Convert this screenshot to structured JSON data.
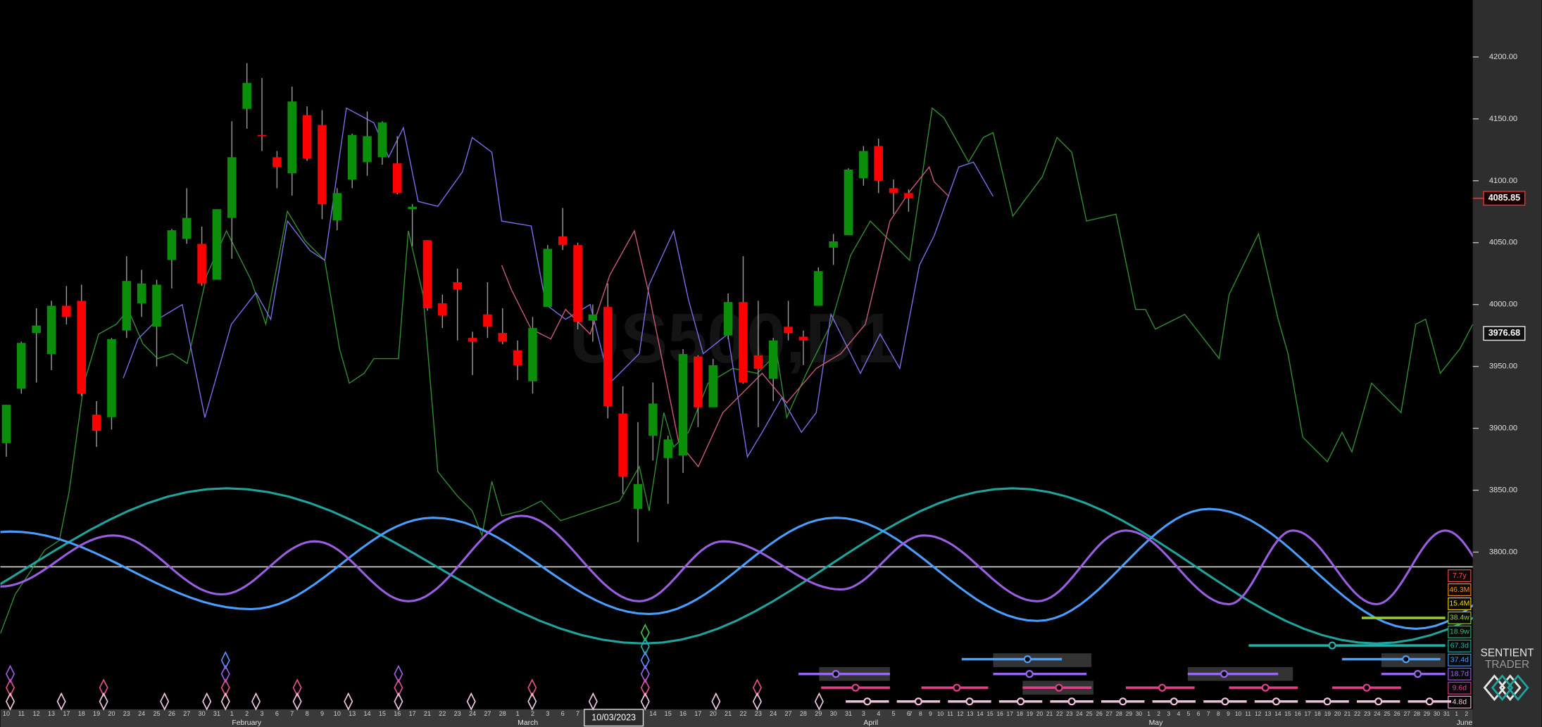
{
  "chart_data": {
    "type": "candlestick",
    "symbol": "US500,D1",
    "x": [
      "10",
      "11",
      "12",
      "13",
      "17",
      "18",
      "19",
      "20",
      "23",
      "24",
      "25",
      "26",
      "27",
      "30",
      "31",
      "1",
      "2",
      "3",
      "6",
      "7",
      "8",
      "9",
      "10",
      "13",
      "14",
      "15",
      "16",
      "17",
      "21",
      "22",
      "23",
      "24",
      "27",
      "28",
      "1",
      "2",
      "3",
      "6",
      "7",
      "8",
      "9",
      "10",
      "13",
      "14",
      "15",
      "16",
      "17",
      "20",
      "21",
      "22",
      "23",
      "24",
      "27",
      "28",
      "29",
      "30",
      "31",
      "3",
      "4",
      "5",
      "6"
    ],
    "future_x": [
      "7",
      "8",
      "9",
      "10",
      "11",
      "12",
      "13",
      "14",
      "15",
      "16",
      "17",
      "18",
      "19",
      "20",
      "21",
      "22",
      "23",
      "24",
      "25",
      "26",
      "27",
      "28",
      "29",
      "30",
      "1",
      "2",
      "3",
      "4",
      "5",
      "6",
      "7",
      "8",
      "9",
      "10",
      "11",
      "12",
      "13",
      "14",
      "15",
      "16",
      "17",
      "18",
      "19",
      "20",
      "21",
      "22",
      "23",
      "24",
      "25",
      "26",
      "27",
      "28",
      "29",
      "30",
      "31",
      "1",
      "2"
    ],
    "months": [
      "February",
      "March",
      "April",
      "May",
      "June"
    ],
    "open": [
      3888,
      3932,
      3977,
      3960,
      3999,
      4003,
      3911,
      3909,
      3979,
      4001,
      3982,
      4036,
      4053,
      4049,
      4020,
      4070,
      4158,
      4137,
      4119,
      4106,
      4153,
      4145,
      4068,
      4101,
      4115,
      4119,
      4114,
      4077,
      4052,
      4001,
      4018,
      3973,
      3992,
      3977,
      3963,
      3938,
      3998,
      4055,
      4048,
      3987,
      3998,
      3912,
      3835,
      3894,
      3876,
      3878,
      3958,
      3917,
      3975,
      4002,
      3959,
      3940,
      3982,
      3974,
      3999,
      4046,
      4056,
      4102,
      4128,
      4094,
      4090
    ],
    "high": [
      3919,
      3970,
      3997,
      4003,
      4015,
      4016,
      3922,
      3973,
      4039,
      4028,
      4020,
      4061,
      4094,
      4063,
      4077,
      4148,
      4195,
      4183,
      4124,
      4176,
      4160,
      4157,
      4094,
      4138,
      4156,
      4148,
      4136,
      4081,
      4052,
      4008,
      4029,
      3978,
      4018,
      3997,
      3971,
      3990,
      4048,
      4078,
      4050,
      4000,
      4017,
      3934,
      3905,
      3937,
      3894,
      3964,
      3959,
      3956,
      4009,
      4039,
      4003,
      3973,
      4003,
      3979,
      4030,
      4057,
      4110,
      4128,
      4134,
      4101,
      4093
    ],
    "low": [
      3877,
      3928,
      3937,
      3947,
      3984,
      3926,
      3885,
      3899,
      3973,
      3990,
      3950,
      4013,
      4049,
      4015,
      4020,
      4037,
      4142,
      4124,
      4094,
      4088,
      4116,
      4069,
      4060,
      4094,
      4104,
      4113,
      4089,
      4047,
      3995,
      3981,
      3971,
      3943,
      3973,
      3968,
      3939,
      3928,
      3998,
      4044,
      3980,
      3970,
      3908,
      3847,
      3808,
      3874,
      3839,
      3864,
      3901,
      3917,
      3972,
      3936,
      3901,
      3922,
      3971,
      3951,
      3999,
      4032,
      4056,
      4096,
      4090,
      4073,
      4075
    ],
    "close": [
      3919,
      3969,
      3983,
      3999,
      3990,
      3928,
      3898,
      3972,
      4019,
      4017,
      4016,
      4060,
      4070,
      4017,
      4077,
      4119,
      4179,
      4136,
      4111,
      4164,
      4118,
      4081,
      4090,
      4137,
      4136,
      4147,
      4090,
      4079,
      3997,
      3991,
      4012,
      3970,
      3982,
      3970,
      3951,
      3981,
      4045,
      4048,
      3986,
      3992,
      3918,
      3861,
      3855,
      3920,
      3891,
      3960,
      3917,
      3951,
      4002,
      3937,
      3948,
      3971,
      3977,
      3971,
      4027,
      4051,
      4109,
      4124,
      4100,
      4090,
      4085.85
    ],
    "up_color": "#0b8f0b",
    "down_color": "#ff0000",
    "ylim": [
      3673,
      4246
    ],
    "yticks": [
      {
        "value": 4200,
        "label": "4200.00"
      },
      {
        "value": 4150,
        "label": "4150.00"
      },
      {
        "value": 4100,
        "label": "4100.00"
      },
      {
        "value": 4050,
        "label": "4050.00"
      },
      {
        "value": 4000,
        "label": "4000.00"
      },
      {
        "value": 3950,
        "label": "3950.00"
      },
      {
        "value": 3900,
        "label": "3900.00"
      },
      {
        "value": 3850,
        "label": "3850.00"
      },
      {
        "value": 3800,
        "label": "3800.00"
      }
    ],
    "current_price": 4085.85,
    "cursor_price": 3976.68,
    "cursor_date": "10/03/2023",
    "cycles": [
      {
        "label": "7.7y",
        "color": "#ff4d4d"
      },
      {
        "label": "46.3M",
        "color": "#ff8c1a"
      },
      {
        "label": "15.4M",
        "color": "#ffd700"
      },
      {
        "label": "38.4w",
        "color": "#9acd32"
      },
      {
        "label": "18.9w",
        "color": "#3cb371"
      },
      {
        "label": "67.3d",
        "color": "#20b2aa"
      },
      {
        "label": "37.4d",
        "color": "#4a9eff"
      },
      {
        "label": "18.7d",
        "color": "#9966ee"
      },
      {
        "label": "9.6d",
        "color": "#e0408a"
      },
      {
        "label": "4.8d",
        "color": "#f0c0d8"
      }
    ],
    "brand": [
      "SENTIENT",
      "TRADER"
    ]
  }
}
